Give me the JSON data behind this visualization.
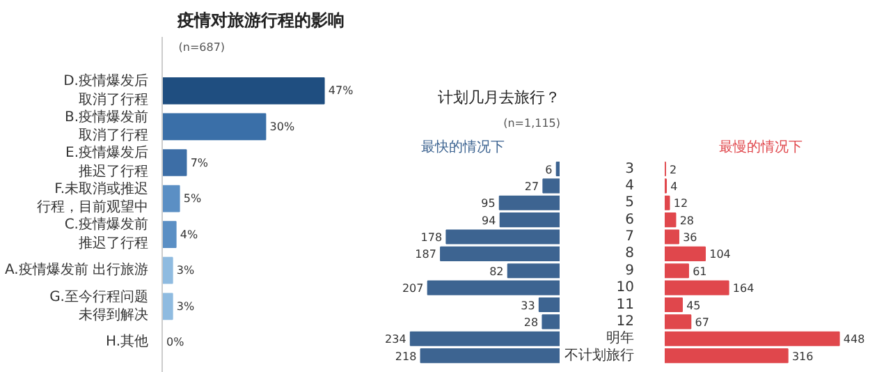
{
  "chart_data": [
    {
      "type": "bar",
      "orientation": "horizontal",
      "title": "疫情对旅游行程的影响",
      "subtitle": "(n=687)",
      "categories": [
        "D.疫情爆发后取消了行程",
        "B.疫情爆发前取消了行程",
        "E.疫情爆发后推迟了行程",
        "F.未取消或推迟行程，目前观望中",
        "C.疫情爆发前推迟了行程",
        "A.疫情爆发前 出行旅游",
        "G.至今行程问题未得到解决",
        "H.其他"
      ],
      "values": [
        47,
        30,
        7,
        5,
        4,
        3,
        3,
        0
      ],
      "colors": [
        "#1f4e80",
        "#3a6fa8",
        "#3d6ea6",
        "#5b8fc4",
        "#5b8fc4",
        "#8fbbe0",
        "#8fbbe0",
        "#8fbbe0"
      ],
      "value_labels": [
        "47%",
        "30%",
        "7%",
        "5%",
        "4%",
        "3%",
        "3%",
        "0%"
      ],
      "tick_labels": "y",
      "grid": false
    },
    {
      "type": "bar",
      "orientation": "horizontal",
      "title": "计划几月去旅行？",
      "subtitle": "(n=1,115)",
      "categories": [
        "3",
        "4",
        "5",
        "6",
        "7",
        "8",
        "9",
        "10",
        "11",
        "12",
        "明年",
        "不计划旅行"
      ],
      "series": [
        {
          "name": "最快的情况下",
          "color": "#3d6491",
          "values": [
            6,
            27,
            95,
            94,
            178,
            187,
            82,
            207,
            33,
            28,
            234,
            218
          ]
        }
      ],
      "tick_labels": false,
      "data_labels": true,
      "grid": false
    },
    {
      "type": "bar",
      "orientation": "horizontal",
      "categories": [
        "3",
        "4",
        "5",
        "6",
        "7",
        "8",
        "9",
        "10",
        "11",
        "12",
        "明年",
        "不计划旅行"
      ],
      "series": [
        {
          "name": "最慢的情况下",
          "color": "#e0474c",
          "values": [
            2,
            4,
            12,
            28,
            36,
            104,
            61,
            164,
            45,
            67,
            448,
            316
          ]
        }
      ],
      "tick_labels": "y",
      "data_labels": true,
      "grid": false
    }
  ]
}
